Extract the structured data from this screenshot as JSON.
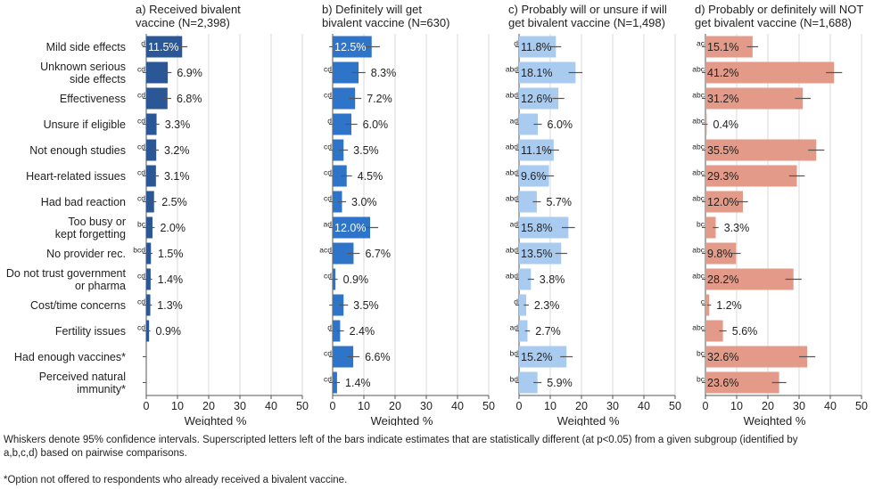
{
  "chart_data": {
    "type": "bar",
    "orientation": "horizontal",
    "categories": [
      "Mild side effects",
      "Unknown serious side effects",
      "Effectiveness",
      "Unsure if eligible",
      "Not enough studies",
      "Heart-related issues",
      "Had bad reaction",
      "Too busy or kept forgetting",
      "No provider rec.",
      "Do not trust government or pharma",
      "Cost/time concerns",
      "Fertility issues",
      "Had enough vaccines*",
      "Perceived natural immunity*"
    ],
    "category_lines": [
      [
        "Mild side effects"
      ],
      [
        "Unknown serious",
        "side effects"
      ],
      [
        "Effectiveness"
      ],
      [
        "Unsure if eligible"
      ],
      [
        "Not enough studies"
      ],
      [
        "Heart-related issues"
      ],
      [
        "Had bad reaction"
      ],
      [
        "Too busy or",
        "kept forgetting"
      ],
      [
        "No provider rec."
      ],
      [
        "Do not trust government",
        "or pharma"
      ],
      [
        "Cost/time concerns"
      ],
      [
        "Fertility issues"
      ],
      [
        "Had enough vaccines*"
      ],
      [
        "Perceived natural",
        "immunity*"
      ]
    ],
    "xlabel": "Weighted %",
    "xlim": [
      0,
      50
    ],
    "xticks": [
      0,
      10,
      20,
      30,
      40,
      50
    ],
    "grid": true,
    "series": [
      {
        "name": "a) Received bivalent vaccine (N=2,398)",
        "title_lines": [
          "a) Received bivalent",
          "vaccine (N=2,398)"
        ],
        "color": "#2b5797",
        "label_inside_color": "#ffffff",
        "values": [
          11.5,
          6.9,
          6.8,
          3.3,
          3.2,
          3.1,
          2.5,
          2.0,
          1.5,
          1.4,
          1.3,
          0.9,
          null,
          null
        ],
        "ci_low": [
          9.8,
          5.7,
          5.6,
          2.4,
          2.4,
          2.2,
          1.8,
          1.3,
          1.0,
          0.9,
          0.8,
          0.5,
          null,
          null
        ],
        "ci_high": [
          13.2,
          8.1,
          8.0,
          4.2,
          4.0,
          4.0,
          3.2,
          2.7,
          2.0,
          1.9,
          1.8,
          1.3,
          null,
          null
        ],
        "labels": [
          "11.5%",
          "6.9%",
          "6.8%",
          "3.3%",
          "3.2%",
          "3.1%",
          "2.5%",
          "2.0%",
          "1.5%",
          "1.4%",
          "1.3%",
          "0.9%",
          "",
          ""
        ],
        "superscripts": [
          "d",
          "cd",
          "cd",
          "cd",
          "cd",
          "cd",
          "cd",
          "bc",
          "bcd",
          "cd",
          "cd",
          "cd",
          "",
          ""
        ]
      },
      {
        "name": "b) Definitely will get bivalent vaccine (N=630)",
        "title_lines": [
          "b) Definitely will get",
          "bivalent vaccine (N=630)"
        ],
        "color": "#2e74c9",
        "label_inside_color": "#ffffff",
        "values": [
          12.5,
          8.3,
          7.2,
          6.0,
          3.5,
          4.5,
          3.0,
          12.0,
          6.7,
          0.9,
          3.5,
          2.4,
          6.6,
          1.4
        ],
        "ci_low": [
          9.9,
          6.1,
          5.2,
          4.1,
          2.1,
          2.8,
          1.7,
          9.4,
          4.7,
          0.2,
          2.1,
          1.2,
          4.6,
          0.5
        ],
        "ci_high": [
          15.1,
          10.5,
          9.2,
          7.9,
          4.9,
          6.2,
          4.3,
          14.6,
          8.7,
          1.6,
          4.9,
          3.6,
          8.6,
          2.3
        ],
        "labels": [
          "12.5%",
          "8.3%",
          "7.2%",
          "6.0%",
          "3.5%",
          "4.5%",
          "3.0%",
          "12.0%",
          "6.7%",
          "0.9%",
          "3.5%",
          "2.4%",
          "6.6%",
          "1.4%"
        ],
        "superscripts": [
          "",
          "cd",
          "cd",
          "d",
          "cd",
          "cd",
          "cd",
          "ad",
          "acd",
          "cd",
          "",
          "d",
          "cd",
          "cd"
        ]
      },
      {
        "name": "c) Probably will or unsure if will get bivalent vaccine (N=1,498)",
        "title_lines": [
          "c) Probably will or unsure if will",
          "get bivalent vaccine (N=1,498)"
        ],
        "color": "#a9cbef",
        "label_inside_color": "#222222",
        "values": [
          11.8,
          18.1,
          12.6,
          6.0,
          11.1,
          9.6,
          5.7,
          15.8,
          13.5,
          3.8,
          2.3,
          2.7,
          15.2,
          5.9
        ],
        "ci_low": [
          10.1,
          15.9,
          10.7,
          4.7,
          9.4,
          8.0,
          4.4,
          13.7,
          11.6,
          2.8,
          1.5,
          1.9,
          13.2,
          4.6
        ],
        "ci_high": [
          13.5,
          20.3,
          14.5,
          7.3,
          12.8,
          11.2,
          7.0,
          17.9,
          15.4,
          4.8,
          3.1,
          3.5,
          17.2,
          7.2
        ],
        "labels": [
          "11.8%",
          "18.1%",
          "12.6%",
          "6.0%",
          "11.1%",
          "9.6%",
          "5.7%",
          "15.8%",
          "13.5%",
          "3.8%",
          "2.3%",
          "2.7%",
          "15.2%",
          "5.9%"
        ],
        "superscripts": [
          "d",
          "abd",
          "abd",
          "ad",
          "abd",
          "abd",
          "abd",
          "ad",
          "abd",
          "abd",
          "d",
          "ad",
          "bd",
          "bd"
        ]
      },
      {
        "name": "d) Probably or definitely will NOT get bivalent vaccine (N=1,688)",
        "title_lines": [
          "d) Probably or definitely will NOT",
          "get bivalent vaccine (N=1,688)"
        ],
        "color": "#e39a88",
        "label_inside_color": "#222222",
        "values": [
          15.1,
          41.2,
          31.2,
          0.4,
          35.5,
          29.3,
          12.0,
          3.3,
          9.8,
          28.2,
          1.2,
          5.6,
          32.6,
          23.6
        ],
        "ci_low": [
          13.3,
          38.6,
          28.7,
          0.1,
          32.9,
          26.8,
          10.4,
          2.4,
          8.3,
          25.6,
          0.6,
          4.4,
          30.0,
          21.3
        ],
        "ci_high": [
          16.9,
          43.8,
          33.7,
          0.7,
          38.1,
          31.8,
          13.6,
          4.2,
          11.3,
          30.8,
          1.8,
          6.8,
          35.2,
          25.9
        ],
        "labels": [
          "15.1%",
          "41.2%",
          "31.2%",
          "0.4%",
          "35.5%",
          "29.3%",
          "12.0%",
          "3.3%",
          "9.8%",
          "28.2%",
          "1.2%",
          "5.6%",
          "32.6%",
          "23.6%"
        ],
        "superscripts": [
          "ac",
          "abc",
          "abc",
          "abc",
          "abc",
          "abc",
          "abc",
          "bc",
          "abc",
          "abc",
          "c",
          "abc",
          "bc",
          "bc"
        ]
      }
    ]
  },
  "footnotes": {
    "whiskers": "Whiskers denote 95% confidence intervals. Superscripted letters left of the bars indicate estimates that are statistically different (at p<0.05) from a given subgroup (identified by a,b,c,d) based on pairwise comparisons.",
    "option": "*Option not offered to respondents who already received a bivalent vaccine."
  }
}
